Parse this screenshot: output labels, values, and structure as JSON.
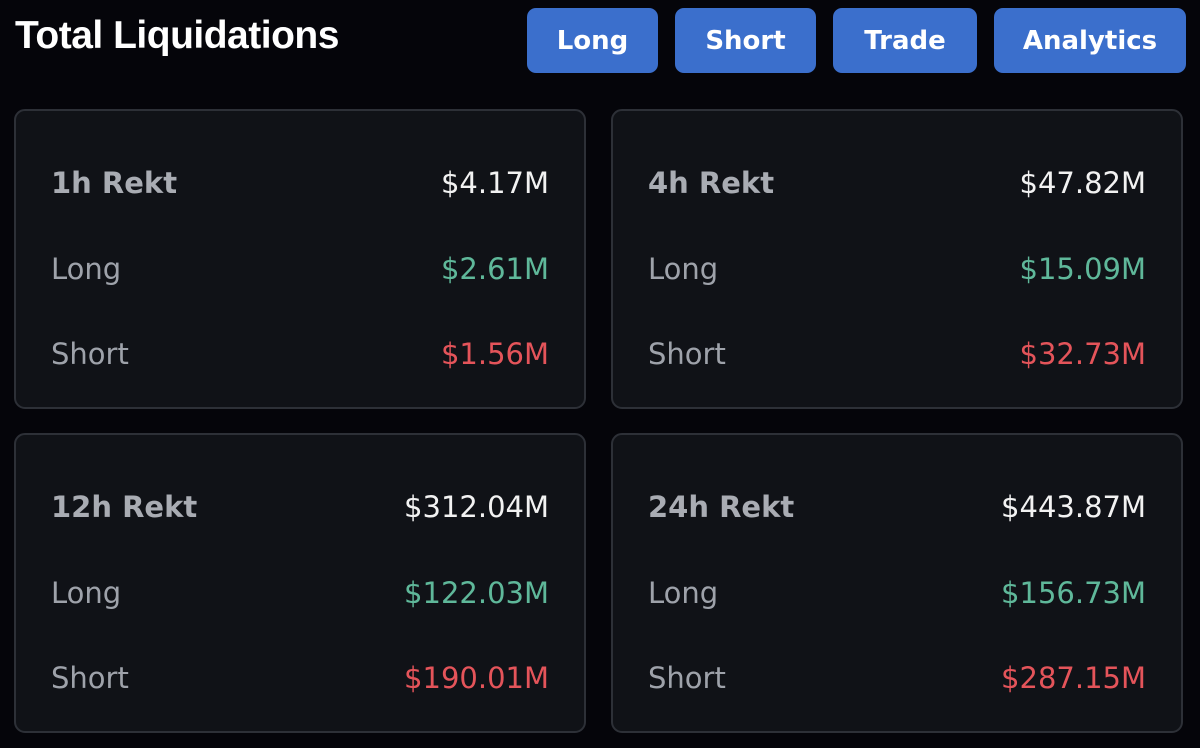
{
  "header": {
    "title": "Total Liquidations",
    "buttons": [
      "Long",
      "Short",
      "Trade",
      "Analytics"
    ]
  },
  "colors": {
    "button": "#3b6fcc",
    "long": "#5fb89a",
    "short": "#e4545a",
    "background": "#05050a",
    "card": "#101217"
  },
  "cards": [
    {
      "label": "1h Rekt",
      "total": "$4.17M",
      "long_label": "Long",
      "long": "$2.61M",
      "short_label": "Short",
      "short": "$1.56M"
    },
    {
      "label": "4h Rekt",
      "total": "$47.82M",
      "long_label": "Long",
      "long": "$15.09M",
      "short_label": "Short",
      "short": "$32.73M"
    },
    {
      "label": "12h Rekt",
      "total": "$312.04M",
      "long_label": "Long",
      "long": "$122.03M",
      "short_label": "Short",
      "short": "$190.01M"
    },
    {
      "label": "24h Rekt",
      "total": "$443.87M",
      "long_label": "Long",
      "long": "$156.73M",
      "short_label": "Short",
      "short": "$287.15M"
    }
  ]
}
